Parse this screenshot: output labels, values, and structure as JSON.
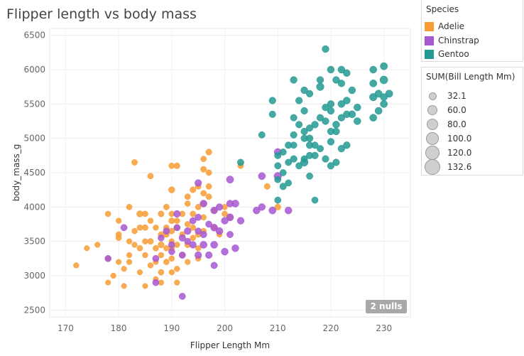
{
  "title": "Flipper length vs body mass",
  "legend_species": {
    "title": "Species",
    "items": [
      {
        "label": "Adelie",
        "color": "#f89c34"
      },
      {
        "label": "Chinstrap",
        "color": "#a757d2"
      },
      {
        "label": "Gentoo",
        "color": "#239a93"
      }
    ]
  },
  "legend_size": {
    "title": "SUM(Bill Length Mm)",
    "items": [
      "32.1",
      "60.0",
      "80.0",
      "100.0",
      "120.0",
      "132.6"
    ]
  },
  "nulls_badge": "2 nulls",
  "chart_data": {
    "type": "scatter",
    "title": "Flipper length vs body mass",
    "xlabel": "Flipper Length Mm",
    "ylabel": "body_mass_g",
    "xlim": [
      167,
      235
    ],
    "ylim": [
      2400,
      6600
    ],
    "xticks": [
      170,
      180,
      190,
      200,
      210,
      220,
      230
    ],
    "yticks": [
      2500,
      3000,
      3500,
      4000,
      4500,
      5000,
      5500,
      6000,
      6500
    ],
    "grid": true,
    "legend_position": "right",
    "size_encoding": "SUM(Bill Length Mm)",
    "series": [
      {
        "name": "Adelie",
        "color": "#f89c34",
        "points": [
          [
            172,
            3150,
            38
          ],
          [
            174,
            3400,
            37
          ],
          [
            176,
            3450,
            38
          ],
          [
            178,
            3900,
            39
          ],
          [
            178,
            3250,
            38
          ],
          [
            178,
            2900,
            36
          ],
          [
            179,
            3000,
            37
          ],
          [
            180,
            3800,
            38
          ],
          [
            180,
            3550,
            39
          ],
          [
            180,
            3200,
            37
          ],
          [
            180,
            3600,
            40
          ],
          [
            181,
            3100,
            37
          ],
          [
            181,
            2850,
            36
          ],
          [
            182,
            4000,
            40
          ],
          [
            182,
            3500,
            38
          ],
          [
            182,
            3200,
            38
          ],
          [
            182,
            3300,
            37
          ],
          [
            183,
            3650,
            39
          ],
          [
            183,
            3450,
            38
          ],
          [
            183,
            4650,
            41
          ],
          [
            184,
            3900,
            45
          ],
          [
            184,
            3700,
            40
          ],
          [
            184,
            3400,
            40
          ],
          [
            184,
            3050,
            37
          ],
          [
            185,
            3900,
            40
          ],
          [
            185,
            3700,
            41
          ],
          [
            185,
            3500,
            39
          ],
          [
            185,
            3300,
            38
          ],
          [
            185,
            2850,
            36
          ],
          [
            186,
            4450,
            41
          ],
          [
            186,
            3800,
            39
          ],
          [
            186,
            3500,
            41
          ],
          [
            186,
            3150,
            38
          ],
          [
            187,
            3400,
            40
          ],
          [
            187,
            3700,
            39
          ],
          [
            187,
            3200,
            38
          ],
          [
            187,
            2950,
            37
          ],
          [
            188,
            3900,
            42
          ],
          [
            188,
            3600,
            40
          ],
          [
            188,
            3450,
            44
          ],
          [
            188,
            3300,
            39
          ],
          [
            188,
            3050,
            40
          ],
          [
            188,
            2900,
            38
          ],
          [
            189,
            4000,
            41
          ],
          [
            189,
            3600,
            41
          ],
          [
            189,
            3400,
            39
          ],
          [
            189,
            3700,
            40
          ],
          [
            189,
            3200,
            40
          ],
          [
            190,
            4250,
            45
          ],
          [
            190,
            4600,
            40
          ],
          [
            190,
            3900,
            39
          ],
          [
            190,
            3800,
            42
          ],
          [
            190,
            3650,
            41
          ],
          [
            190,
            3500,
            38
          ],
          [
            190,
            3400,
            41
          ],
          [
            190,
            3250,
            39
          ],
          [
            190,
            3050,
            38
          ],
          [
            191,
            4600,
            42
          ],
          [
            191,
            3800,
            40
          ],
          [
            191,
            3700,
            41
          ],
          [
            191,
            3450,
            39
          ],
          [
            191,
            3100,
            39
          ],
          [
            191,
            2900,
            38
          ],
          [
            192,
            3900,
            40
          ],
          [
            192,
            3600,
            39
          ],
          [
            192,
            3300,
            39
          ],
          [
            193,
            4150,
            41
          ],
          [
            193,
            4050,
            39
          ],
          [
            193,
            3750,
            40
          ],
          [
            193,
            3450,
            41
          ],
          [
            193,
            3200,
            38
          ],
          [
            194,
            4250,
            42
          ],
          [
            194,
            3900,
            40
          ],
          [
            194,
            3700,
            41
          ],
          [
            194,
            3550,
            39
          ],
          [
            195,
            4300,
            41
          ],
          [
            195,
            4000,
            40
          ],
          [
            195,
            3600,
            41
          ],
          [
            195,
            3400,
            38
          ],
          [
            195,
            3250,
            39
          ],
          [
            196,
            4700,
            40
          ],
          [
            196,
            4550,
            42
          ],
          [
            196,
            4200,
            41
          ],
          [
            196,
            4050,
            41
          ],
          [
            196,
            3850,
            39
          ],
          [
            196,
            3650,
            40
          ],
          [
            197,
            4500,
            41
          ],
          [
            197,
            4300,
            40
          ],
          [
            197,
            4800,
            43
          ],
          [
            197,
            4150,
            41
          ],
          [
            198,
            3950,
            39
          ],
          [
            198,
            3700,
            41
          ],
          [
            199,
            3600,
            38
          ],
          [
            200,
            3900,
            40
          ],
          [
            200,
            4000,
            40
          ],
          [
            201,
            3850,
            41
          ],
          [
            203,
            4600,
            41
          ],
          [
            208,
            4300,
            42
          ],
          [
            210,
            4000,
            43
          ]
        ]
      },
      {
        "name": "Chinstrap",
        "color": "#a757d2",
        "points": [
          [
            178,
            3250,
            46
          ],
          [
            181,
            3700,
            46
          ],
          [
            187,
            2900,
            46
          ],
          [
            187,
            3250,
            46
          ],
          [
            188,
            3550,
            45
          ],
          [
            189,
            3650,
            47
          ],
          [
            190,
            3450,
            46
          ],
          [
            190,
            3350,
            45
          ],
          [
            191,
            3700,
            46
          ],
          [
            191,
            3900,
            49
          ],
          [
            192,
            2700,
            46
          ],
          [
            192,
            3300,
            47
          ],
          [
            192,
            3550,
            48
          ],
          [
            193,
            3500,
            46
          ],
          [
            193,
            3650,
            50
          ],
          [
            194,
            3800,
            47
          ],
          [
            194,
            3450,
            49
          ],
          [
            195,
            4350,
            49
          ],
          [
            195,
            3650,
            46
          ],
          [
            195,
            3300,
            50
          ],
          [
            195,
            3850,
            47
          ],
          [
            196,
            3600,
            48
          ],
          [
            196,
            4050,
            51
          ],
          [
            196,
            3450,
            52
          ],
          [
            197,
            3750,
            46
          ],
          [
            197,
            3300,
            49
          ],
          [
            198,
            3700,
            51
          ],
          [
            198,
            3950,
            50
          ],
          [
            198,
            3450,
            52
          ],
          [
            198,
            3150,
            47
          ],
          [
            199,
            3650,
            51
          ],
          [
            199,
            4000,
            49
          ],
          [
            200,
            3800,
            50
          ],
          [
            200,
            3350,
            51
          ],
          [
            201,
            4050,
            50
          ],
          [
            201,
            3600,
            47
          ],
          [
            201,
            3850,
            52
          ],
          [
            201,
            4400,
            53
          ],
          [
            202,
            4050,
            52
          ],
          [
            202,
            3400,
            51
          ],
          [
            203,
            3800,
            50
          ],
          [
            206,
            3950,
            51
          ],
          [
            207,
            4450,
            52
          ],
          [
            207,
            4000,
            50
          ],
          [
            209,
            3950,
            52
          ],
          [
            210,
            4450,
            55
          ],
          [
            210,
            4800,
            52
          ],
          [
            212,
            3950,
            51
          ]
        ]
      },
      {
        "name": "Gentoo",
        "color": "#239a93",
        "points": [
          [
            203,
            4650,
            47
          ],
          [
            207,
            5050,
            47
          ],
          [
            209,
            5350,
            48
          ],
          [
            209,
            5550,
            49
          ],
          [
            210,
            4100,
            46
          ],
          [
            210,
            4600,
            47
          ],
          [
            210,
            4750,
            48
          ],
          [
            210,
            4400,
            47
          ],
          [
            211,
            4800,
            47
          ],
          [
            211,
            4500,
            46
          ],
          [
            211,
            4300,
            48
          ],
          [
            212,
            4350,
            46
          ],
          [
            212,
            4900,
            48
          ],
          [
            212,
            4650,
            47
          ],
          [
            213,
            5050,
            48
          ],
          [
            213,
            4700,
            49
          ],
          [
            213,
            5300,
            48
          ],
          [
            213,
            5850,
            50
          ],
          [
            213,
            4900,
            47
          ],
          [
            214,
            5550,
            49
          ],
          [
            214,
            4600,
            47
          ],
          [
            214,
            5200,
            48
          ],
          [
            215,
            5000,
            49
          ],
          [
            215,
            5400,
            49
          ],
          [
            215,
            5100,
            49
          ],
          [
            215,
            4700,
            48
          ],
          [
            215,
            4650,
            55
          ],
          [
            215,
            5700,
            50
          ],
          [
            216,
            4900,
            49
          ],
          [
            216,
            5150,
            48
          ],
          [
            216,
            4750,
            48
          ],
          [
            216,
            4450,
            47
          ],
          [
            216,
            5000,
            50
          ],
          [
            216,
            5650,
            49
          ],
          [
            217,
            4100,
            46
          ],
          [
            217,
            4900,
            48
          ],
          [
            217,
            4750,
            49
          ],
          [
            217,
            5200,
            50
          ],
          [
            218,
            4850,
            48
          ],
          [
            218,
            5850,
            50
          ],
          [
            218,
            5750,
            55
          ],
          [
            218,
            5300,
            49
          ],
          [
            219,
            5450,
            50
          ],
          [
            219,
            4700,
            49
          ],
          [
            219,
            5250,
            50
          ],
          [
            220,
            5100,
            49
          ],
          [
            220,
            4950,
            50
          ],
          [
            220,
            5400,
            50
          ],
          [
            220,
            6000,
            51
          ],
          [
            220,
            5500,
            50
          ],
          [
            220,
            4600,
            49
          ],
          [
            221,
            5100,
            50
          ],
          [
            221,
            5200,
            51
          ],
          [
            221,
            5850,
            50
          ],
          [
            221,
            4650,
            49
          ],
          [
            222,
            5800,
            50
          ],
          [
            222,
            5300,
            50
          ],
          [
            222,
            6000,
            51
          ],
          [
            222,
            4850,
            50
          ],
          [
            222,
            5500,
            51
          ],
          [
            223,
            5950,
            50
          ],
          [
            223,
            5550,
            51
          ],
          [
            223,
            5350,
            50
          ],
          [
            223,
            4900,
            50
          ],
          [
            224,
            5700,
            51
          ],
          [
            224,
            5350,
            52
          ],
          [
            225,
            5250,
            51
          ],
          [
            225,
            5450,
            51
          ],
          [
            228,
            5600,
            55
          ],
          [
            228,
            5300,
            52
          ],
          [
            228,
            5800,
            52
          ],
          [
            228,
            6000,
            51
          ],
          [
            229,
            5400,
            52
          ],
          [
            229,
            5650,
            53
          ],
          [
            230,
            5850,
            58
          ],
          [
            230,
            5500,
            52
          ],
          [
            230,
            6050,
            53
          ],
          [
            230,
            5600,
            52
          ],
          [
            231,
            5650,
            53
          ],
          [
            219,
            6300,
            50
          ]
        ]
      }
    ]
  }
}
